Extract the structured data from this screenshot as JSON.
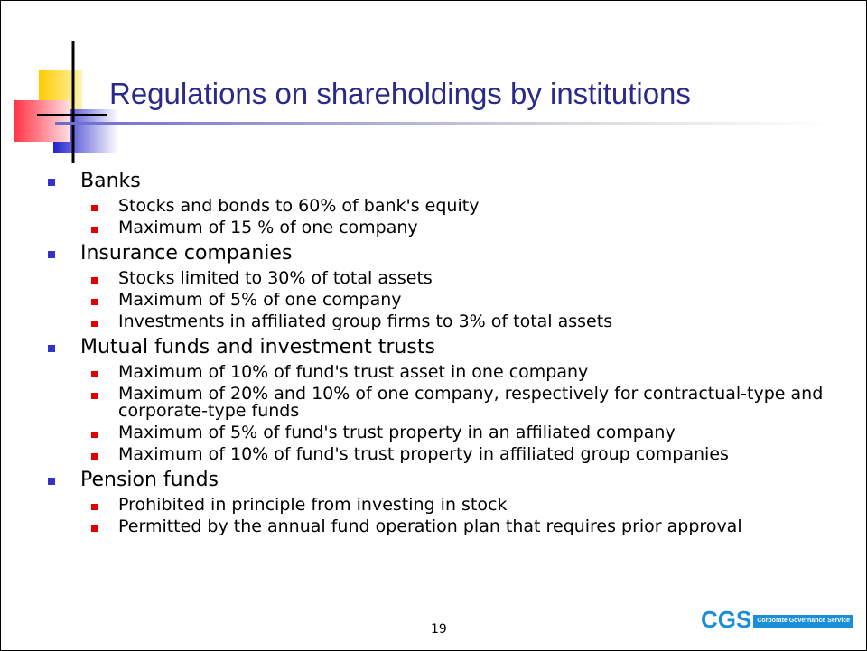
{
  "header": {
    "title": "Regulations on shareholdings by institutions"
  },
  "items": [
    {
      "label": "Banks",
      "subitems": [
        "Stocks and bonds to 60% of bank's equity",
        "Maximum of 15 % of one company"
      ]
    },
    {
      "label": "Insurance companies",
      "subitems": [
        "Stocks limited to 30% of total assets",
        "Maximum of 5% of one company",
        "Investments in affiliated group firms to 3% of total assets"
      ]
    },
    {
      "label": "Mutual funds and investment trusts",
      "subitems": [
        "Maximum of 10% of fund's trust asset in one company",
        "Maximum of 20% and 10% of one company, respectively for contractual-type and corporate-type funds",
        "Maximum of 5% of fund's trust property in an affiliated company",
        "Maximum of 10% of fund's trust property in affiliated group companies"
      ]
    },
    {
      "label": "Pension funds",
      "subitems": [
        "Prohibited in principle from investing in stock",
        "Permitted by the annual fund operation plan that requires prior approval"
      ]
    }
  ],
  "footer": {
    "page": "19",
    "logo": "CGS",
    "logo_text": "Corporate Governance Service"
  }
}
